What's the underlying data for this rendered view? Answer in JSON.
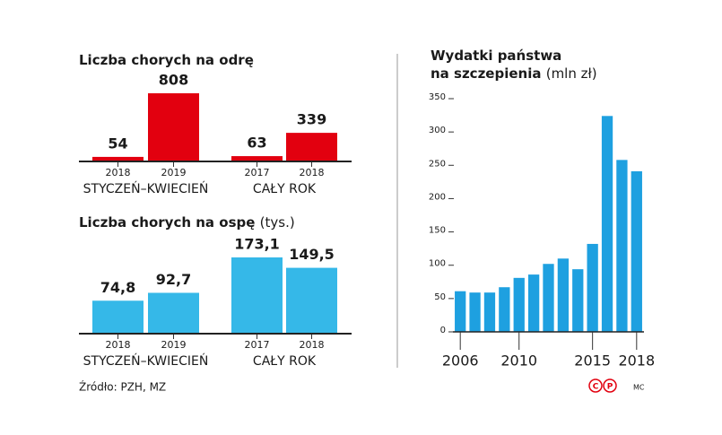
{
  "chart_data": [
    {
      "type": "bar",
      "title": "Liczba chorych na odrę",
      "categories": [
        "2018",
        "2019",
        "2017",
        "2018"
      ],
      "groups": [
        "STYCZEŃ–KWIECIEŃ",
        "CAŁY ROK"
      ],
      "values": [
        54,
        808,
        63,
        339
      ],
      "color": "#e2000f"
    },
    {
      "type": "bar",
      "title": "Liczba chorych na ospę",
      "subtitle": "(tys.)",
      "categories": [
        "2018",
        "2019",
        "2017",
        "2018"
      ],
      "groups": [
        "STYCZEŃ–KWIECIEŃ",
        "CAŁY ROK"
      ],
      "values": [
        74.8,
        92.7,
        173.1,
        149.5
      ],
      "value_labels": [
        "74,8",
        "92,7",
        "173,1",
        "149,5"
      ],
      "color": "#35b8e8"
    },
    {
      "type": "column",
      "title": [
        "Wydatki państwa",
        "na szczepienia"
      ],
      "subtitle": "(mln zł)",
      "x": [
        2006,
        2007,
        2008,
        2009,
        2010,
        2011,
        2012,
        2013,
        2014,
        2015,
        2016,
        2017,
        2018
      ],
      "values": [
        61,
        59,
        59,
        67,
        81,
        86,
        102,
        110,
        94,
        132,
        324,
        258,
        241
      ],
      "color": "#1ea0e0",
      "xlim": [
        2005.5,
        2018.5
      ],
      "xticks": [
        2006,
        2010,
        2015,
        2018
      ],
      "ylim": [
        0,
        350
      ],
      "yticks": [
        0,
        50,
        100,
        150,
        200,
        250,
        300,
        350
      ]
    }
  ],
  "source": "Źródło: PZH, MZ",
  "logo": [
    "C",
    "P"
  ],
  "credit": "MC"
}
